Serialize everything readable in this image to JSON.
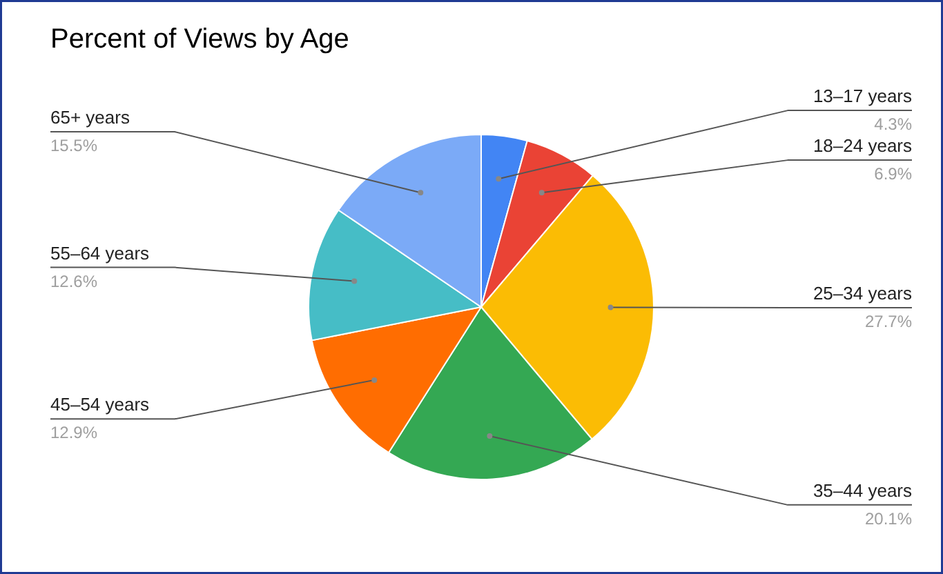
{
  "chart_data": {
    "type": "pie",
    "title": "Percent of Views by Age",
    "categories": [
      "13–17 years",
      "18–24 years",
      "25–34 years",
      "35–44 years",
      "45–54 years",
      "55–64 years",
      "65+ years"
    ],
    "values": [
      4.3,
      6.9,
      27.7,
      20.1,
      12.9,
      12.6,
      15.5
    ],
    "colors": [
      "#4285f4",
      "#ea4335",
      "#fbbc04",
      "#34a853",
      "#ff6d01",
      "#46bdc6",
      "#7baaf7"
    ],
    "value_labels": [
      "4.3%",
      "6.9%",
      "27.7%",
      "20.1%",
      "12.9%",
      "12.6%",
      "15.5%"
    ]
  }
}
